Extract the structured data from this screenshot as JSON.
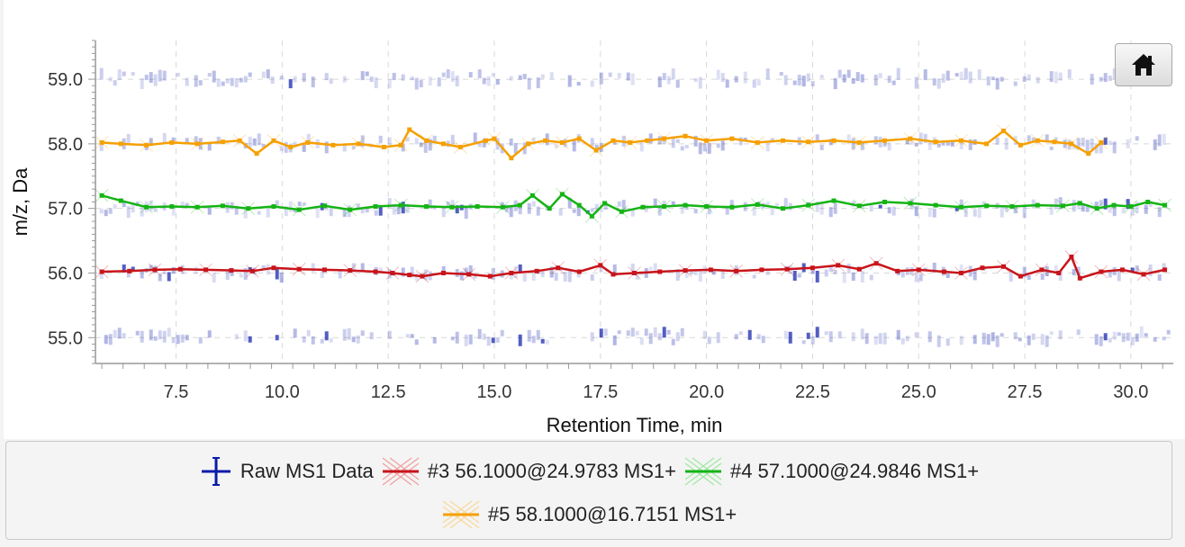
{
  "chart_data": {
    "type": "line",
    "xlabel": "Retention Time, min",
    "ylabel": "m/z, Da",
    "xlim": [
      5.6,
      31.0
    ],
    "ylim": [
      54.6,
      59.6
    ],
    "xticks": [
      "7.5",
      "10.0",
      "12.5",
      "15.0",
      "17.5",
      "20.0",
      "22.5",
      "25.0",
      "27.5",
      "30.0"
    ],
    "yticks": [
      "55.0",
      "56.0",
      "57.0",
      "58.0",
      "59.0"
    ],
    "grid": true,
    "legend_position": "bottom",
    "raw_series": {
      "name": "Raw MS1 Data",
      "color": "#0a1aa8",
      "bands_mz": [
        55.0,
        56.0,
        57.0,
        58.0,
        59.0
      ],
      "x_start": 5.7,
      "x_end": 30.9
    },
    "series": [
      {
        "name": "#3 56.1000@24.9783 MS1+",
        "color": "#c8141a",
        "x": [
          5.75,
          6.4,
          7.0,
          7.6,
          8.2,
          8.8,
          9.3,
          9.8,
          10.4,
          11.0,
          11.6,
          12.2,
          12.6,
          13.0,
          13.3,
          13.8,
          14.4,
          14.9,
          15.4,
          16.0,
          16.5,
          17.0,
          17.5,
          17.8,
          18.3,
          18.9,
          19.5,
          20.1,
          20.7,
          21.3,
          21.9,
          22.5,
          23.1,
          23.6,
          24.0,
          24.5,
          25.0,
          25.6,
          26.0,
          26.5,
          27.0,
          27.4,
          27.9,
          28.3,
          28.6,
          28.8,
          29.3,
          29.8,
          30.3,
          30.8
        ],
        "y": [
          56.02,
          56.03,
          56.05,
          56.06,
          56.05,
          56.04,
          56.03,
          56.08,
          56.06,
          56.05,
          56.04,
          56.02,
          56.0,
          55.97,
          55.95,
          56.0,
          55.98,
          55.95,
          56.0,
          56.03,
          56.08,
          56.02,
          56.12,
          55.98,
          56.0,
          56.02,
          56.04,
          56.05,
          56.03,
          56.05,
          56.06,
          56.08,
          56.12,
          56.06,
          56.15,
          56.03,
          56.05,
          56.02,
          56.0,
          56.08,
          56.1,
          55.95,
          56.05,
          56.0,
          56.25,
          55.92,
          56.02,
          56.05,
          55.98,
          56.05
        ]
      },
      {
        "name": "#4 57.1000@24.9846 MS1+",
        "color": "#14b414",
        "x": [
          5.75,
          6.2,
          6.8,
          7.4,
          8.0,
          8.6,
          9.2,
          9.8,
          10.4,
          11.0,
          11.6,
          12.2,
          12.8,
          13.4,
          14.0,
          14.6,
          15.2,
          15.6,
          15.9,
          16.3,
          16.6,
          17.0,
          17.3,
          17.6,
          18.0,
          18.5,
          19.0,
          19.5,
          20.0,
          20.6,
          21.2,
          21.8,
          22.4,
          23.0,
          23.6,
          24.2,
          24.8,
          25.4,
          26.0,
          26.6,
          27.2,
          27.8,
          28.4,
          28.8,
          29.2,
          29.6,
          30.0,
          30.4,
          30.8
        ],
        "y": [
          57.2,
          57.12,
          57.02,
          57.03,
          57.02,
          57.04,
          57.0,
          57.03,
          56.98,
          57.04,
          56.98,
          57.03,
          57.05,
          57.03,
          57.02,
          57.03,
          57.02,
          57.05,
          57.2,
          57.0,
          57.22,
          57.05,
          56.88,
          57.08,
          56.95,
          57.02,
          57.03,
          57.05,
          57.03,
          57.02,
          57.06,
          57.0,
          57.05,
          57.12,
          57.04,
          57.1,
          57.08,
          57.05,
          57.02,
          57.04,
          57.03,
          57.05,
          57.04,
          57.08,
          57.0,
          57.05,
          57.03,
          57.1,
          57.05
        ]
      },
      {
        "name": "#5 58.1000@16.7151 MS1+",
        "color": "#f5a000",
        "x": [
          5.75,
          6.2,
          6.8,
          7.4,
          8.0,
          8.6,
          9.0,
          9.4,
          9.8,
          10.2,
          10.6,
          11.2,
          11.8,
          12.4,
          12.8,
          13.0,
          13.4,
          13.8,
          14.2,
          14.8,
          15.0,
          15.4,
          15.8,
          16.2,
          16.6,
          17.0,
          17.4,
          17.8,
          18.2,
          18.6,
          19.0,
          19.5,
          20.0,
          20.6,
          21.2,
          21.8,
          22.4,
          23.0,
          23.6,
          24.2,
          24.8,
          25.4,
          26.0,
          26.6,
          27.0,
          27.4,
          27.8,
          28.2,
          28.6,
          29.0,
          29.3
        ],
        "y": [
          58.02,
          58.0,
          57.98,
          58.02,
          58.0,
          58.03,
          58.05,
          57.85,
          58.05,
          57.95,
          58.02,
          57.98,
          58.0,
          57.95,
          57.98,
          58.22,
          58.05,
          58.0,
          57.95,
          58.05,
          58.08,
          57.78,
          58.0,
          58.05,
          58.02,
          58.08,
          57.9,
          58.05,
          58.02,
          58.05,
          58.08,
          58.12,
          58.05,
          58.08,
          58.02,
          58.05,
          58.03,
          58.05,
          58.02,
          58.05,
          58.08,
          58.03,
          58.05,
          58.0,
          58.2,
          57.98,
          58.05,
          58.03,
          58.0,
          57.85,
          58.02
        ]
      }
    ]
  },
  "legend": {
    "raw": "Raw MS1 Data",
    "s3": "#3 56.1000@24.9783 MS1+",
    "s4": "#4 57.1000@24.9846 MS1+",
    "s5": "#5 58.1000@16.7151 MS1+"
  },
  "toolbar": {
    "home_icon": "home-icon"
  }
}
